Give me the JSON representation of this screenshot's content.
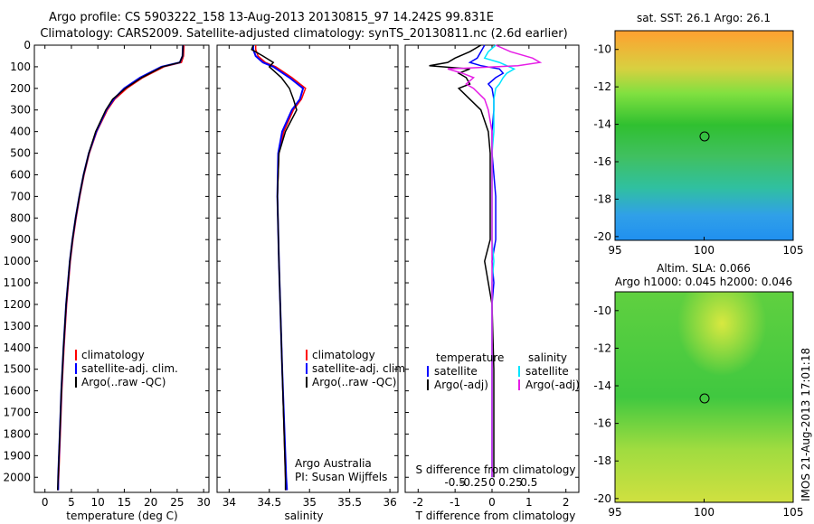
{
  "title": {
    "line1": "Argo profile: CS 5903222_158 13-Aug-2013 20130815_97 14.242S 99.831E",
    "line2": "Climatology: CARS2009. Satellite-adjusted climatology: synTS_20130811.nc (2.6d earlier)"
  },
  "colors": {
    "climatology": "#ff0000",
    "satellite": "#0000ff",
    "argo": "#000000",
    "sat_s": "#00e5ff",
    "argo_s": "#e61ee6"
  },
  "chart_data": [
    {
      "type": "line",
      "id": "temperature",
      "xlabel": "temperature (deg C)",
      "ylabel": "",
      "xlim": [
        -2,
        31
      ],
      "ylim": [
        2070,
        0
      ],
      "xticks": [
        0,
        5,
        10,
        15,
        20,
        25,
        30
      ],
      "yticks": [
        0,
        100,
        200,
        300,
        400,
        500,
        600,
        700,
        800,
        900,
        1000,
        1100,
        1200,
        1300,
        1400,
        1500,
        1600,
        1700,
        1800,
        1900,
        2000
      ],
      "legend": [
        "climatology",
        "satellite-adj. clim.",
        "Argo(..raw -QC)"
      ],
      "depth": [
        0,
        50,
        80,
        100,
        150,
        200,
        250,
        300,
        400,
        500,
        600,
        700,
        800,
        900,
        1000,
        1200,
        1400,
        1600,
        1800,
        2000,
        2060
      ],
      "series": [
        {
          "name": "climatology",
          "values": [
            26.3,
            26.2,
            25.8,
            22.5,
            18.5,
            15.5,
            13.2,
            11.8,
            9.8,
            8.4,
            7.4,
            6.6,
            5.9,
            5.3,
            4.8,
            4.1,
            3.6,
            3.2,
            2.9,
            2.6,
            2.5
          ]
        },
        {
          "name": "satellite-adj. clim.",
          "values": [
            26.1,
            26.0,
            25.5,
            22.0,
            18.0,
            15.0,
            13.0,
            11.6,
            9.7,
            8.3,
            7.3,
            6.5,
            5.8,
            5.2,
            4.7,
            4.0,
            3.5,
            3.1,
            2.8,
            2.5,
            2.5
          ]
        },
        {
          "name": "Argo(..raw -QC)",
          "values": [
            26.1,
            26.0,
            25.5,
            22.2,
            18.3,
            15.2,
            12.8,
            11.5,
            9.6,
            8.3,
            7.3,
            6.5,
            5.8,
            5.2,
            4.7,
            4.0,
            3.5,
            3.1,
            2.8,
            2.5,
            2.4
          ]
        }
      ]
    },
    {
      "type": "line",
      "id": "salinity",
      "xlabel": "salinity",
      "xlim": [
        33.85,
        36.1
      ],
      "ylim": [
        2070,
        0
      ],
      "xticks": [
        34,
        34.5,
        35,
        35.5,
        36
      ],
      "legend": [
        "climatology",
        "satellite-adj. clim.",
        "Argo(..raw -QC)"
      ],
      "annotation": [
        "Argo Australia",
        "PI: Susan Wijffels"
      ],
      "depth": [
        0,
        20,
        50,
        80,
        100,
        150,
        200,
        250,
        300,
        400,
        500,
        700,
        1000,
        1500,
        2000,
        2060
      ],
      "series": [
        {
          "name": "climatology",
          "values": [
            34.33,
            34.33,
            34.36,
            34.45,
            34.58,
            34.78,
            34.95,
            34.9,
            34.8,
            34.68,
            34.62,
            34.6,
            34.62,
            34.66,
            34.7,
            34.71
          ]
        },
        {
          "name": "satellite-adj. clim.",
          "values": [
            34.3,
            34.3,
            34.33,
            34.42,
            34.55,
            34.75,
            34.92,
            34.88,
            34.78,
            34.66,
            34.61,
            34.6,
            34.62,
            34.66,
            34.71,
            34.72
          ]
        },
        {
          "name": "Argo(..raw -QC)",
          "values": [
            34.3,
            34.28,
            34.42,
            34.55,
            34.5,
            34.65,
            34.75,
            34.8,
            34.84,
            34.7,
            34.62,
            34.6,
            34.62,
            34.66,
            34.7,
            34.7
          ]
        }
      ]
    },
    {
      "type": "line",
      "id": "difference",
      "xlabel": "T difference from climatology",
      "toplabel": "S difference from climatology",
      "xlim": [
        -2.35,
        2.35
      ],
      "ylim": [
        2070,
        0
      ],
      "xticks": [
        -2,
        -1,
        0,
        1,
        2
      ],
      "s_ticks": [
        "-0.5",
        "-0.25",
        "0",
        "0.25",
        "0.5"
      ],
      "legend_t": {
        "title": "temperature",
        "items": [
          "satellite",
          "Argo(-adj)"
        ]
      },
      "legend_s": {
        "title": "salinity",
        "items": [
          "satellite",
          "Argo(-adj)"
        ]
      },
      "depth": [
        0,
        30,
        60,
        80,
        95,
        110,
        130,
        150,
        180,
        200,
        250,
        300,
        400,
        500,
        700,
        900,
        1000,
        1100,
        1200,
        1500,
        1800,
        2000
      ],
      "series": [
        {
          "name": "T satellite",
          "values": [
            -0.2,
            -0.3,
            -0.4,
            -0.6,
            -0.3,
            0.2,
            0.3,
            0.1,
            -0.1,
            0,
            0.05,
            0.05,
            0,
            0,
            0.1,
            0.1,
            0,
            0.05,
            0,
            0,
            0,
            0
          ]
        },
        {
          "name": "T Argo(-adj)",
          "values": [
            -0.3,
            -0.6,
            -1.0,
            -1.2,
            -1.7,
            -0.6,
            -0.9,
            -0.7,
            -0.6,
            -0.9,
            -0.6,
            -0.3,
            -0.1,
            -0.05,
            -0.05,
            -0.05,
            -0.2,
            -0.1,
            0,
            0.05,
            0.05,
            0.05
          ]
        },
        {
          "name": "S satellite",
          "values": [
            0.1,
            -0.1,
            -0.2,
            0.2,
            0.4,
            0.6,
            0.4,
            0.3,
            0.2,
            0.1,
            0.05,
            0.05,
            0.05,
            0,
            0,
            0,
            0.05,
            0,
            0,
            0,
            0,
            0
          ]
        },
        {
          "name": "S Argo(-adj)",
          "values": [
            0.1,
            0.5,
            1.1,
            1.3,
            0.7,
            -1.2,
            -0.8,
            -0.5,
            -0.7,
            -0.5,
            -0.2,
            -0.1,
            0,
            0,
            0,
            0,
            0,
            0,
            0,
            0,
            0,
            0
          ]
        }
      ]
    }
  ],
  "maps": [
    {
      "title": "sat. SST: 26.1  Argo: 26.1",
      "xticks": [
        95,
        100,
        105
      ],
      "yticks": [
        -10,
        -12,
        -14,
        -16,
        -18,
        -20
      ]
    },
    {
      "title": "Altim. SLA: 0.066",
      "subtitle": "Argo h1000: 0.045 h2000: 0.046",
      "xticks": [
        95,
        100,
        105
      ],
      "yticks": [
        -10,
        -12,
        -14,
        -16,
        -18,
        -20
      ]
    }
  ],
  "credit": "IMOS 21-Aug-2013 17:01:18"
}
